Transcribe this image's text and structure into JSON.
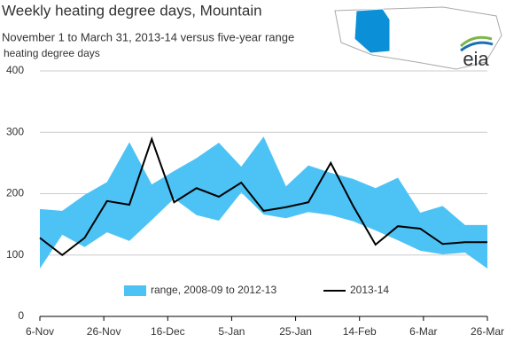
{
  "chart_data": {
    "type": "band-line",
    "title": "Weekly heating degree days, Mountain",
    "subtitle": "November 1 to March 31, 2013-14 versus five-year range",
    "y_label": "heating degree  days",
    "x": [
      0,
      7,
      14,
      21,
      28,
      35,
      42,
      49,
      56,
      63,
      70,
      77,
      84,
      91,
      98,
      105,
      112,
      119,
      126,
      133,
      140
    ],
    "xlim": [
      0,
      140
    ],
    "xticks": [
      {
        "value": 0,
        "label": "6-Nov"
      },
      {
        "value": 20,
        "label": "26-Nov"
      },
      {
        "value": 40,
        "label": "16-Dec"
      },
      {
        "value": 60,
        "label": "5-Jan"
      },
      {
        "value": 80,
        "label": "25-Jan"
      },
      {
        "value": 100,
        "label": "14-Feb"
      },
      {
        "value": 120,
        "label": "6-Mar"
      },
      {
        "value": 140,
        "label": "26-Mar"
      }
    ],
    "ylim": [
      0,
      400
    ],
    "yticks": [
      0,
      100,
      200,
      300,
      400
    ],
    "grid": true,
    "series": [
      {
        "name": "range, 2008-09 to 2012-13",
        "color": "#4dc3f5",
        "low": [
          78,
          133,
          113,
          137,
          123,
          157,
          192,
          165,
          156,
          202,
          166,
          160,
          170,
          165,
          155,
          140,
          124,
          107,
          101,
          104,
          78
        ],
        "high": [
          175,
          172,
          198,
          219,
          284,
          215,
          237,
          258,
          283,
          244,
          293,
          212,
          246,
          234,
          224,
          209,
          226,
          169,
          180,
          149,
          149
        ]
      },
      {
        "name": "2013-14",
        "color": "#000000",
        "values": [
          128,
          100,
          128,
          188,
          182,
          289,
          186,
          209,
          195,
          218,
          172,
          178,
          186,
          250,
          180,
          117,
          147,
          143,
          118,
          121,
          121
        ]
      }
    ]
  },
  "logo": "eia"
}
